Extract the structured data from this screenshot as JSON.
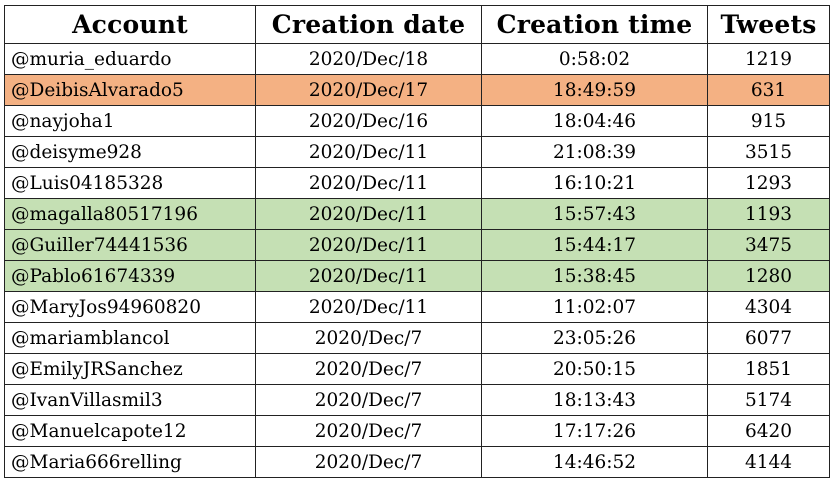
{
  "headers": [
    "Account",
    "Creation date",
    "Creation time",
    "Tweets"
  ],
  "rows": [
    {
      "account": "@muria_eduardo",
      "date": "2020/Dec/18",
      "time": "0:58:02",
      "tweets": "1219",
      "highlight": "none"
    },
    {
      "account": "@DeibisAlvarado5",
      "date": "2020/Dec/17",
      "time": "18:49:59",
      "tweets": "631",
      "highlight": "orange"
    },
    {
      "account": "@nayjoha1",
      "date": "2020/Dec/16",
      "time": "18:04:46",
      "tweets": "915",
      "highlight": "none"
    },
    {
      "account": "@deisyme928",
      "date": "2020/Dec/11",
      "time": "21:08:39",
      "tweets": "3515",
      "highlight": "none"
    },
    {
      "account": "@Luis04185328",
      "date": "2020/Dec/11",
      "time": "16:10:21",
      "tweets": "1293",
      "highlight": "none"
    },
    {
      "account": "@magalla80517196",
      "date": "2020/Dec/11",
      "time": "15:57:43",
      "tweets": "1193",
      "highlight": "green"
    },
    {
      "account": "@Guiller74441536",
      "date": "2020/Dec/11",
      "time": "15:44:17",
      "tweets": "3475",
      "highlight": "green"
    },
    {
      "account": "@Pablo61674339",
      "date": "2020/Dec/11",
      "time": "15:38:45",
      "tweets": "1280",
      "highlight": "green"
    },
    {
      "account": "@MaryJos94960820",
      "date": "2020/Dec/11",
      "time": "11:02:07",
      "tweets": "4304",
      "highlight": "none"
    },
    {
      "account": "@mariamblancol",
      "date": "2020/Dec/7",
      "time": "23:05:26",
      "tweets": "6077",
      "highlight": "none"
    },
    {
      "account": "@EmilyJRSanchez",
      "date": "2020/Dec/7",
      "time": "20:50:15",
      "tweets": "1851",
      "highlight": "none"
    },
    {
      "account": "@IvanVillasmil3",
      "date": "2020/Dec/7",
      "time": "18:13:43",
      "tweets": "5174",
      "highlight": "none"
    },
    {
      "account": "@Manuelcapote12",
      "date": "2020/Dec/7",
      "time": "17:17:26",
      "tweets": "6420",
      "highlight": "none"
    },
    {
      "account": "@Maria666relling",
      "date": "2020/Dec/7",
      "time": "14:46:52",
      "tweets": "4144",
      "highlight": "none"
    }
  ],
  "colors": {
    "orange_highlight": "#f4b183",
    "green_highlight": "#c5e0b4"
  }
}
